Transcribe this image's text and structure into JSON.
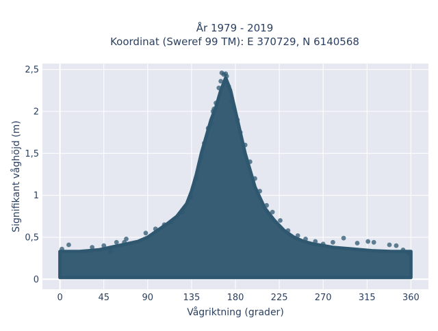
{
  "chart_data": {
    "type": "scatter",
    "title_lines": [
      "År 1979 - 2019",
      "Koordinat (Sweref 99 TM): E 370729, N 6140568"
    ],
    "xlabel": "Vågriktning (grader)",
    "ylabel": "Signifikant våghöjd (m)",
    "xlim": [
      -18,
      378
    ],
    "ylim": [
      -0.12,
      2.57
    ],
    "x_ticks": [
      0,
      45,
      90,
      135,
      180,
      225,
      270,
      315,
      360
    ],
    "x_tick_labels": [
      "0",
      "45",
      "90",
      "135",
      "180",
      "225",
      "270",
      "315",
      "360"
    ],
    "y_ticks": [
      0,
      0.5,
      1,
      1.5,
      2,
      2.5
    ],
    "y_tick_labels": [
      "0",
      "0,5",
      "1",
      "1,5",
      "2",
      "2,5"
    ],
    "grid": true,
    "marker_color": "#2f5870",
    "background_color": "#e5e8f1",
    "envelope": {
      "x": [
        0,
        20,
        40,
        60,
        80,
        90,
        100,
        110,
        120,
        130,
        135,
        140,
        145,
        150,
        155,
        160,
        165,
        170,
        175,
        180,
        185,
        190,
        195,
        200,
        210,
        220,
        230,
        240,
        250,
        260,
        270,
        280,
        300,
        320,
        340,
        360
      ],
      "y_max": [
        0.33,
        0.33,
        0.35,
        0.4,
        0.45,
        0.5,
        0.58,
        0.66,
        0.75,
        0.9,
        1.05,
        1.25,
        1.5,
        1.7,
        1.9,
        2.05,
        2.25,
        2.4,
        2.25,
        2.0,
        1.75,
        1.5,
        1.3,
        1.1,
        0.85,
        0.7,
        0.58,
        0.5,
        0.45,
        0.42,
        0.4,
        0.38,
        0.36,
        0.34,
        0.33,
        0.33
      ],
      "y_min": [
        0.02,
        0.02,
        0.02,
        0.02,
        0.02,
        0.02,
        0.02,
        0.02,
        0.02,
        0.02,
        0.02,
        0.02,
        0.02,
        0.02,
        0.02,
        0.02,
        0.02,
        0.02,
        0.02,
        0.02,
        0.02,
        0.02,
        0.02,
        0.02,
        0.02,
        0.02,
        0.02,
        0.02,
        0.02,
        0.02,
        0.02,
        0.02,
        0.02,
        0.02,
        0.02,
        0.02
      ]
    },
    "points": [
      {
        "x": 2,
        "y": 0.36
      },
      {
        "x": 9,
        "y": 0.41
      },
      {
        "x": 33,
        "y": 0.38
      },
      {
        "x": 45,
        "y": 0.4
      },
      {
        "x": 52,
        "y": 0.33
      },
      {
        "x": 58,
        "y": 0.44
      },
      {
        "x": 66,
        "y": 0.44
      },
      {
        "x": 68,
        "y": 0.48
      },
      {
        "x": 88,
        "y": 0.55
      },
      {
        "x": 98,
        "y": 0.6
      },
      {
        "x": 107,
        "y": 0.65
      },
      {
        "x": 114,
        "y": 0.68
      },
      {
        "x": 126,
        "y": 0.8
      },
      {
        "x": 134,
        "y": 0.98
      },
      {
        "x": 140,
        "y": 1.2
      },
      {
        "x": 145,
        "y": 1.45
      },
      {
        "x": 148,
        "y": 1.62
      },
      {
        "x": 152,
        "y": 1.8
      },
      {
        "x": 155,
        "y": 1.86
      },
      {
        "x": 157,
        "y": 2.0
      },
      {
        "x": 158,
        "y": 2.03
      },
      {
        "x": 160,
        "y": 2.1
      },
      {
        "x": 163,
        "y": 2.28
      },
      {
        "x": 165,
        "y": 2.36
      },
      {
        "x": 166,
        "y": 2.46
      },
      {
        "x": 168,
        "y": 2.44
      },
      {
        "x": 170,
        "y": 2.45
      },
      {
        "x": 171,
        "y": 2.42
      },
      {
        "x": 173,
        "y": 2.3
      },
      {
        "x": 176,
        "y": 2.12
      },
      {
        "x": 178,
        "y": 2.05
      },
      {
        "x": 182,
        "y": 1.9
      },
      {
        "x": 185,
        "y": 1.75
      },
      {
        "x": 190,
        "y": 1.6
      },
      {
        "x": 195,
        "y": 1.4
      },
      {
        "x": 200,
        "y": 1.2
      },
      {
        "x": 205,
        "y": 1.05
      },
      {
        "x": 212,
        "y": 0.88
      },
      {
        "x": 218,
        "y": 0.8
      },
      {
        "x": 226,
        "y": 0.7
      },
      {
        "x": 234,
        "y": 0.58
      },
      {
        "x": 244,
        "y": 0.52
      },
      {
        "x": 252,
        "y": 0.48
      },
      {
        "x": 262,
        "y": 0.45
      },
      {
        "x": 270,
        "y": 0.42
      },
      {
        "x": 280,
        "y": 0.44
      },
      {
        "x": 291,
        "y": 0.49
      },
      {
        "x": 305,
        "y": 0.43
      },
      {
        "x": 316,
        "y": 0.45
      },
      {
        "x": 322,
        "y": 0.44
      },
      {
        "x": 338,
        "y": 0.41
      },
      {
        "x": 345,
        "y": 0.4
      },
      {
        "x": 352,
        "y": 0.35
      },
      {
        "x": 358,
        "y": 0.31
      }
    ]
  }
}
